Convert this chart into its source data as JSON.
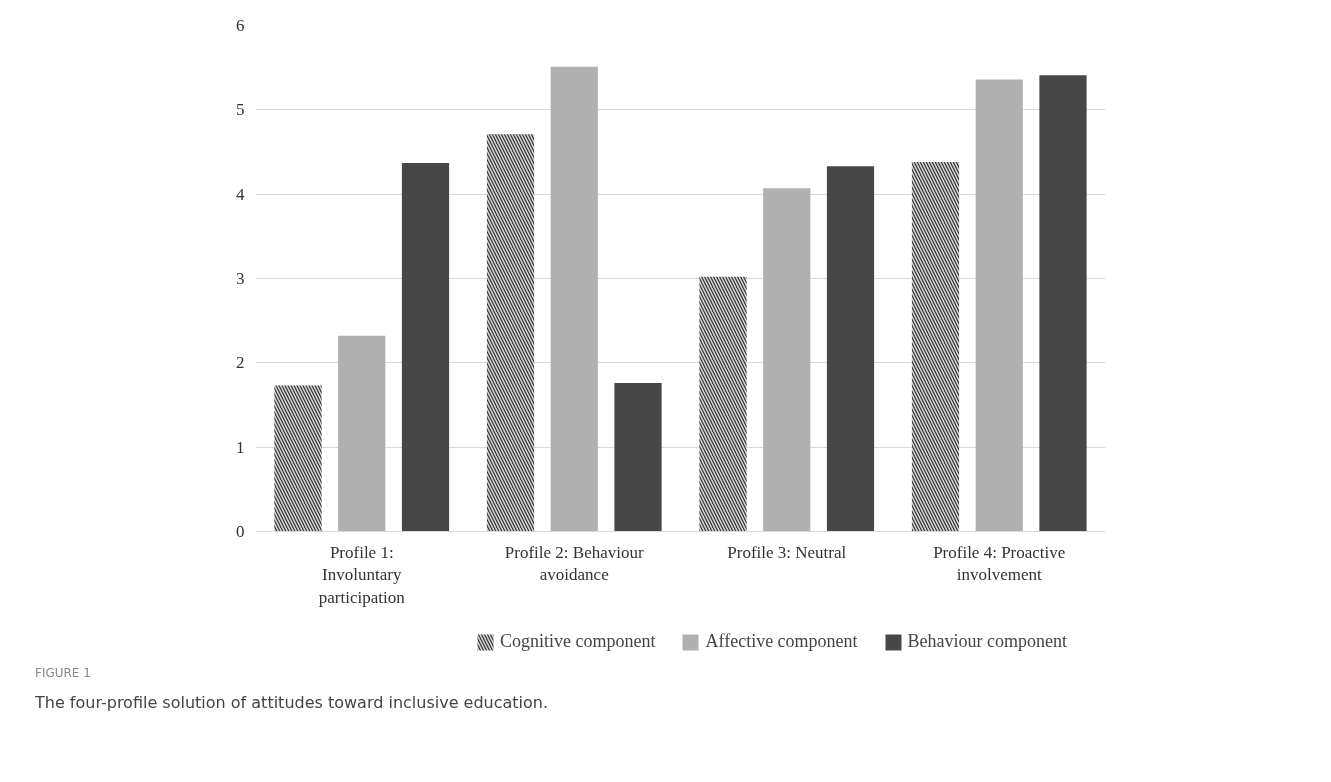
{
  "chart_data": {
    "type": "bar",
    "categories": [
      "Profile 1: Involuntary participation",
      "Profile 2: Behaviour avoidance",
      "Profile 3: Neutral",
      "Profile 4: Proactive involvement"
    ],
    "series": [
      {
        "name": "Cognitive component",
        "color": "#d4d4d4",
        "values": [
          1.73,
          4.71,
          3.02,
          4.38
        ]
      },
      {
        "name": "Affective component",
        "color": "#b0b0b0",
        "values": [
          2.32,
          5.51,
          4.07,
          5.36
        ]
      },
      {
        "name": "Behaviour component",
        "color": "#474747",
        "values": [
          4.37,
          1.76,
          4.33,
          5.41
        ]
      }
    ],
    "ylim": [
      0,
      6
    ],
    "yticks": [
      0,
      1,
      2,
      3,
      4,
      5,
      6
    ],
    "grid": "y",
    "legend": "bottom",
    "annotations": [
      "FIGURE 1",
      "The four-profile solution of attitudes toward inclusive education."
    ]
  }
}
